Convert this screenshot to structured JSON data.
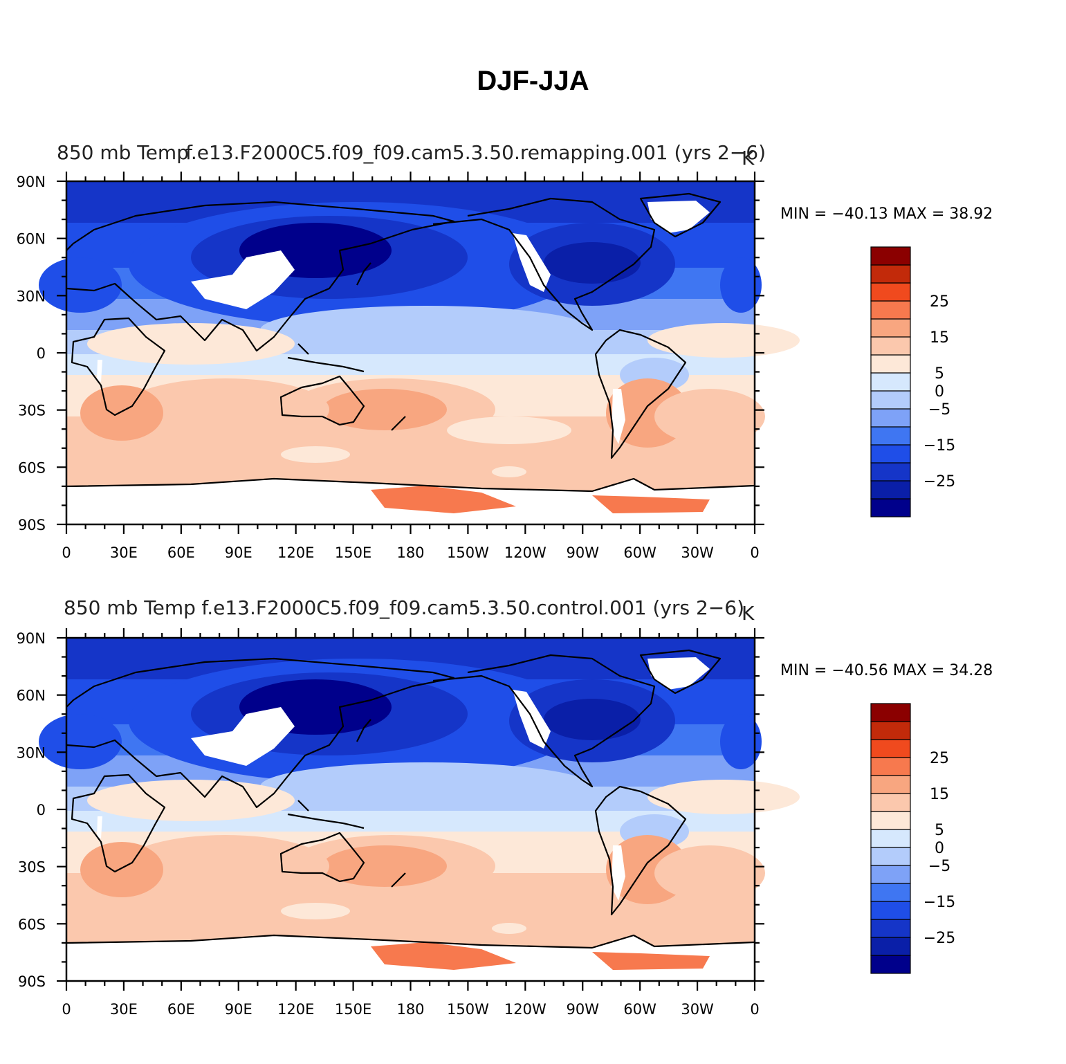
{
  "title": "DJF-JJA",
  "colorbar": {
    "colors": [
      "#00008b",
      "#0a1fa8",
      "#1535c8",
      "#1f4ee8",
      "#3f76f2",
      "#7ea2f7",
      "#b3ccfb",
      "#d6e8fd",
      "#fde8d8",
      "#fbc8ad",
      "#f8a680",
      "#f7794e",
      "#f04a1e",
      "#c22a0a",
      "#8b0000"
    ],
    "labels": [
      {
        "text": "25",
        "index": 12
      },
      {
        "text": "15",
        "index": 10
      },
      {
        "text": "5",
        "index": 8
      },
      {
        "text": "0",
        "index": 7
      },
      {
        "text": "−5",
        "index": 6
      },
      {
        "text": "−15",
        "index": 4
      },
      {
        "text": "−25",
        "index": 2
      }
    ]
  },
  "axes": {
    "lat_labels": [
      "90N",
      "60N",
      "30N",
      "0",
      "30S",
      "60S",
      "90S"
    ],
    "lon_labels": [
      "0",
      "30E",
      "60E",
      "90E",
      "120E",
      "150E",
      "180",
      "150W",
      "120W",
      "90W",
      "60W",
      "30W",
      "0"
    ]
  },
  "panels": [
    {
      "title_left": "850 mb Temp",
      "title_center": "f.e13.F2000C5.f09_f09.cam5.3.50.remapping.001 (yrs 2−6)",
      "units": "K",
      "minmax": "MIN = −40.13 MAX =   38.92",
      "variant": 0
    },
    {
      "title_left": "850 mb Temp",
      "title_center": "f.e13.F2000C5.f09_f09.cam5.3.50.control.001 (yrs 2−6)",
      "units": "K",
      "minmax": "MIN = −40.56 MAX =   34.28",
      "variant": 1
    }
  ]
}
